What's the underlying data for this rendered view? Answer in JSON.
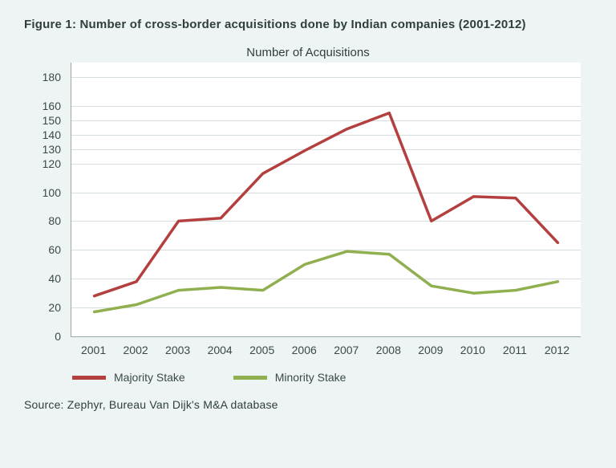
{
  "figure_title": "Figure 1: Number of cross-border acquisitions done by Indian companies (2001-2012)",
  "chart": {
    "type": "line",
    "title": "Number of Acquisitions",
    "background_color": "#eef3f3",
    "plot_background_color": "#ffffff",
    "axis_color": "#9aa8a8",
    "grid_color": "#d6dede",
    "text_color": "#3a4a4a",
    "title_fontsize": 15,
    "label_fontsize": 14,
    "x": {
      "categories": [
        "2001",
        "2002",
        "2003",
        "2004",
        "2005",
        "2006",
        "2007",
        "2008",
        "2009",
        "2010",
        "2011",
        "2012"
      ]
    },
    "y": {
      "min": 0,
      "max": 190,
      "ticks": [
        0,
        20,
        40,
        60,
        80,
        100,
        120,
        130,
        140,
        150,
        160,
        180
      ]
    },
    "series": [
      {
        "name": "Majority Stake",
        "color": "#b3403f",
        "line_width": 3.5,
        "values": [
          28,
          38,
          80,
          82,
          113,
          129,
          144,
          155,
          80,
          97,
          96,
          65
        ]
      },
      {
        "name": "Minority Stake",
        "color": "#90b050",
        "line_width": 3.5,
        "values": [
          17,
          22,
          32,
          34,
          32,
          50,
          59,
          57,
          35,
          30,
          32,
          38
        ]
      }
    ]
  },
  "legend": {
    "items": [
      {
        "label": "Majority Stake",
        "color": "#b3403f"
      },
      {
        "label": "Minority Stake",
        "color": "#90b050"
      }
    ]
  },
  "source": "Source: Zephyr, Bureau Van Dijk's M&A database"
}
